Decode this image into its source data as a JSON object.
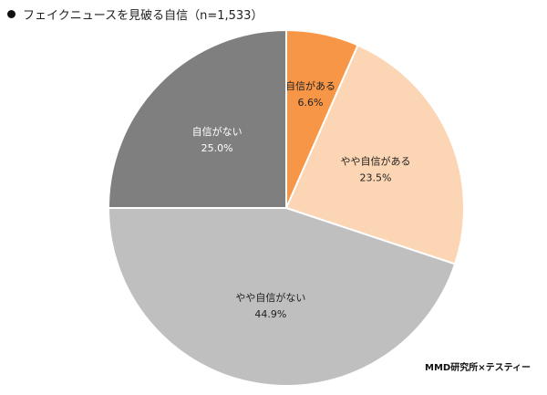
{
  "chart_data": {
    "type": "pie",
    "title": "フェイクニュースを見破る自信（n=1,533）",
    "slices": [
      {
        "label": "自信がある",
        "value": 6.6,
        "display": "6.6%",
        "color": "#f79646",
        "text_color": "#222222"
      },
      {
        "label": "やや自信がある",
        "value": 23.5,
        "display": "23.5%",
        "color": "#fcd5b4",
        "text_color": "#222222"
      },
      {
        "label": "やや自信がない",
        "value": 44.9,
        "display": "44.9%",
        "color": "#bfbfbf",
        "text_color": "#222222"
      },
      {
        "label": "自信がない",
        "value": 25.0,
        "display": "25.0%",
        "color": "#7f7f7f",
        "text_color": "#ffffff"
      }
    ],
    "start_angle": "12 o'clock",
    "direction": "clockwise"
  },
  "source": "MMD研究所×テスティー"
}
